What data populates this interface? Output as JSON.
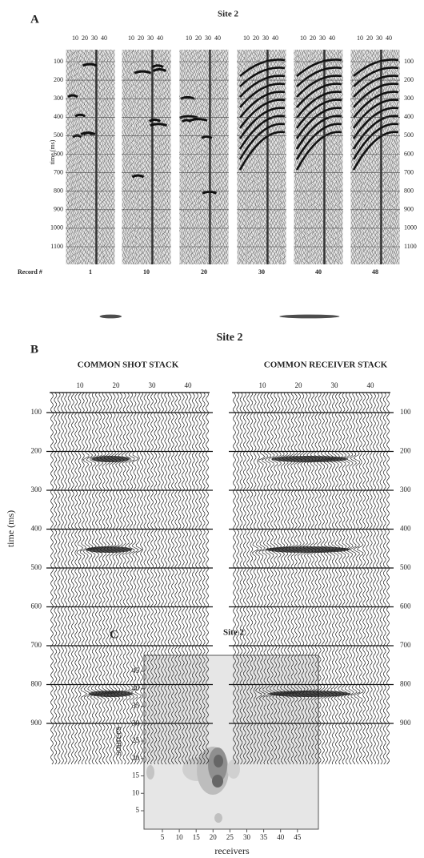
{
  "panel_a": {
    "letter": "A",
    "title": "Site 2",
    "y_label": "time (ms)",
    "record_label": "Record #",
    "records": [
      "1",
      "10",
      "20",
      "30",
      "40",
      "48"
    ],
    "x_ticks": [
      "10",
      "20",
      "30",
      "40"
    ],
    "y_ticks": [
      "100",
      "200",
      "300",
      "400",
      "500",
      "600",
      "700",
      "800",
      "900",
      "1000",
      "1100"
    ]
  },
  "panel_b": {
    "letter": "B",
    "title": "Site 2",
    "left_title": "COMMON SHOT STACK",
    "right_title": "COMMON RECEIVER STACK",
    "y_label": "time (ms)",
    "x_ticks": [
      "10",
      "20",
      "30",
      "40"
    ],
    "y_ticks": [
      "100",
      "200",
      "300",
      "400",
      "500",
      "600",
      "700",
      "800",
      "900"
    ]
  },
  "panel_c": {
    "letter": "C",
    "title": "Site 2",
    "x_label": "receivers",
    "y_label": "sources",
    "x_ticks": [
      "5",
      "10",
      "15",
      "20",
      "25",
      "30",
      "35",
      "40",
      "45"
    ],
    "y_ticks": [
      "5",
      "10",
      "15",
      "20",
      "25",
      "30",
      "35",
      "40",
      "45"
    ]
  }
}
